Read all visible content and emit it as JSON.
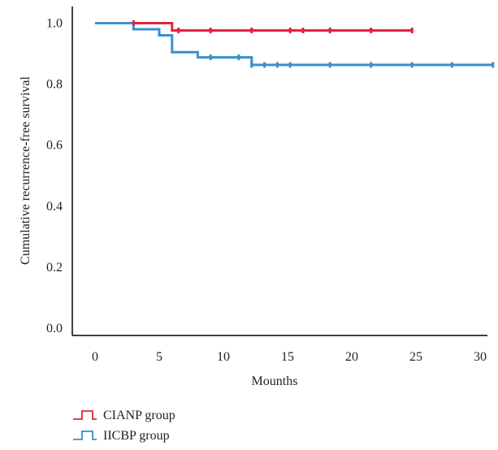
{
  "chart_data": {
    "type": "line",
    "subtype": "kaplan-meier-step",
    "title": "",
    "xlabel": "Mounths",
    "ylabel": "Cumulative recurrence-free survival",
    "xlim": [
      -2.5,
      32
    ],
    "ylim": [
      -0.03,
      1.05
    ],
    "x_ticks": [
      0,
      5,
      10,
      15,
      20,
      25,
      30
    ],
    "y_ticks": [
      0.0,
      0.2,
      0.4,
      0.6,
      0.8,
      1.0
    ],
    "y_tick_labels": [
      "0.0",
      "0.2",
      "0.4",
      "0.6",
      "0.8",
      "1.0"
    ],
    "grid": false,
    "legend_position": "bottom-left",
    "series": [
      {
        "name": "CIANP group",
        "color": "#e2233d",
        "steps": [
          [
            0,
            1.0
          ],
          [
            6.0,
            1.0
          ],
          [
            6.0,
            0.976
          ],
          [
            24.7,
            0.976
          ]
        ],
        "censored": [
          [
            3.0,
            1.0
          ],
          [
            6.5,
            0.976
          ],
          [
            9.0,
            0.976
          ],
          [
            12.2,
            0.976
          ],
          [
            15.2,
            0.976
          ],
          [
            16.2,
            0.976
          ],
          [
            18.3,
            0.976
          ],
          [
            21.5,
            0.976
          ],
          [
            24.7,
            0.976
          ]
        ]
      },
      {
        "name": "IICBP group",
        "color": "#3a8fcf",
        "steps": [
          [
            0,
            1.0
          ],
          [
            3.0,
            1.0
          ],
          [
            3.0,
            0.98
          ],
          [
            5.0,
            0.98
          ],
          [
            5.0,
            0.96
          ],
          [
            6.0,
            0.96
          ],
          [
            6.0,
            0.905
          ],
          [
            8.0,
            0.905
          ],
          [
            8.0,
            0.888
          ],
          [
            12.2,
            0.888
          ],
          [
            12.2,
            0.863
          ],
          [
            31.0,
            0.863
          ]
        ],
        "censored": [
          [
            9.0,
            0.888
          ],
          [
            11.2,
            0.888
          ],
          [
            12.2,
            0.863
          ],
          [
            13.2,
            0.863
          ],
          [
            14.2,
            0.863
          ],
          [
            15.2,
            0.863
          ],
          [
            18.3,
            0.863
          ],
          [
            21.5,
            0.863
          ],
          [
            24.7,
            0.863
          ],
          [
            27.8,
            0.863
          ],
          [
            31.0,
            0.863
          ]
        ]
      }
    ]
  }
}
